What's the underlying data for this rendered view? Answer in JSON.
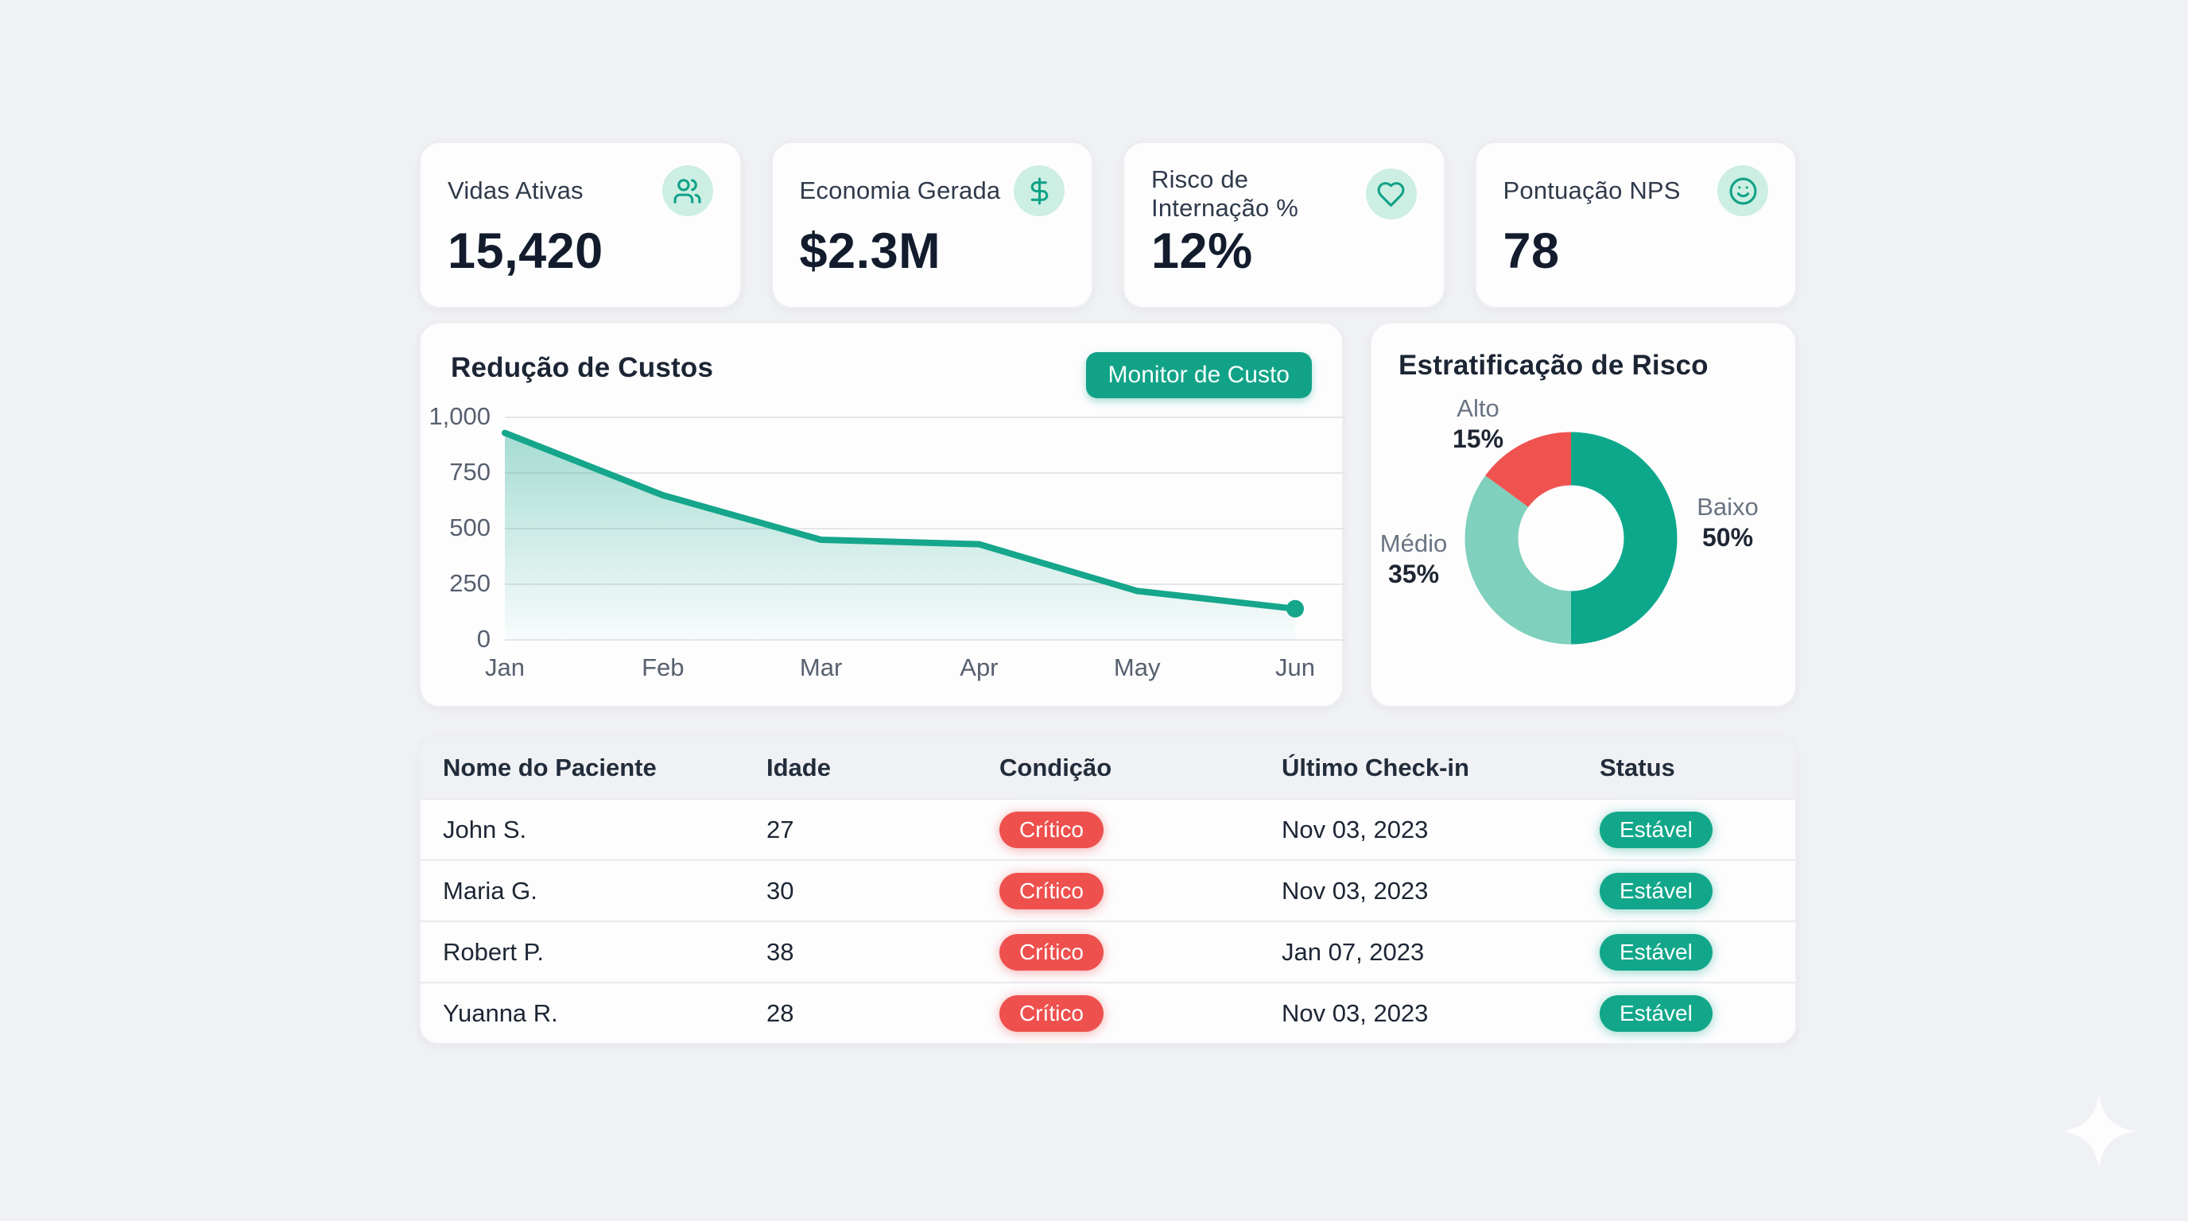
{
  "page": {
    "background": "#f0f1f4"
  },
  "colors": {
    "teal": "#12a287",
    "teal_line": "#15a68b",
    "teal_dark_donut": "#0da88b",
    "teal_light_donut": "#7fd0bc",
    "red": "#ef5350",
    "grid": "#e4e6e9",
    "axis_text": "#57606e"
  },
  "kpi_cards": [
    {
      "label": "Vidas Ativas",
      "value": "15,420",
      "icon": "users-icon"
    },
    {
      "label": "Economia Gerada",
      "value": "$2.3M",
      "icon": "dollar-icon"
    },
    {
      "label": "Risco de Internação %",
      "value": "12%",
      "icon": "heart-icon"
    },
    {
      "label": "Pontuação NPS",
      "value": "78",
      "icon": "smile-icon"
    }
  ],
  "cost_chart": {
    "title": "Redução de Custos",
    "button_label": "Monitor de Custo"
  },
  "risk_chart": {
    "title": "Estratificação de Risco",
    "labels": [
      {
        "name": "Alto",
        "pct": "15%"
      },
      {
        "name": "Médio",
        "pct": "35%"
      },
      {
        "name": "Baixo",
        "pct": "50%"
      }
    ]
  },
  "chart_data": [
    {
      "type": "area",
      "title": "Redução de Custos",
      "x": [
        "Jan",
        "Feb",
        "Mar",
        "Apr",
        "May",
        "Jun"
      ],
      "values": [
        930,
        650,
        450,
        430,
        220,
        140
      ],
      "yticks": [
        "1,000",
        "750",
        "500",
        "250",
        "0"
      ],
      "ytick_values": [
        1000,
        750,
        500,
        250,
        0
      ],
      "ylim": [
        0,
        1000
      ],
      "grid": "horizontal-only",
      "line_color": "#15a68b",
      "fill": "teal gradient fading down",
      "end_dot": true
    },
    {
      "type": "pie",
      "title": "Estratificação de Risco",
      "donut": true,
      "start": "top, clockwise",
      "slices": [
        {
          "label": "Baixo",
          "value": 50,
          "color": "#0da88b"
        },
        {
          "label": "Médio",
          "value": 35,
          "color": "#7fd0bc"
        },
        {
          "label": "Alto",
          "value": 15,
          "color": "#ef5350"
        }
      ]
    }
  ],
  "patients_table": {
    "columns": [
      "Nome do Paciente",
      "Idade",
      "Condição",
      "Último Check-in",
      "Status"
    ],
    "rows": [
      {
        "name": "John S.",
        "age": "27",
        "condition": "Crítico",
        "condition_color": "#ee504e",
        "last_checkin": "Nov 03, 2023",
        "status": "Estável",
        "status_color": "#12a78b"
      },
      {
        "name": "Maria G.",
        "age": "30",
        "condition": "Crítico",
        "condition_color": "#ee504e",
        "last_checkin": "Nov 03, 2023",
        "status": "Estável",
        "status_color": "#12a78b"
      },
      {
        "name": "Robert P.",
        "age": "38",
        "condition": "Crítico",
        "condition_color": "#ee504e",
        "last_checkin": "Jan 07, 2023",
        "status": "Estável",
        "status_color": "#12a78b"
      },
      {
        "name": "Yuanna R.",
        "age": "28",
        "condition": "Crítico",
        "condition_color": "#ee504e",
        "last_checkin": "Nov 03, 2023",
        "status": "Estável",
        "status_color": "#12a78b"
      }
    ]
  }
}
